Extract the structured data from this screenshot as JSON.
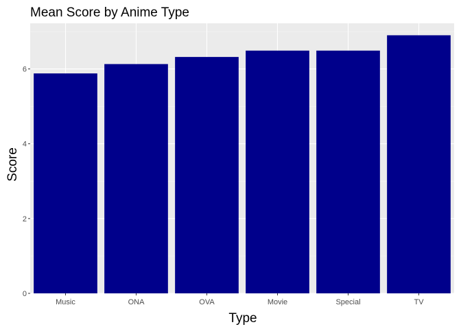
{
  "chart_data": {
    "type": "bar",
    "title": "Mean Score by Anime Type",
    "xlabel": "Type",
    "ylabel": "Score",
    "categories": [
      "Music",
      "ONA",
      "OVA",
      "Movie",
      "Special",
      "TV"
    ],
    "values": [
      5.88,
      6.13,
      6.32,
      6.49,
      6.49,
      6.9
    ],
    "ylim": [
      0,
      7.22
    ],
    "yticks": [
      0,
      2,
      4,
      6
    ],
    "ytick_labels": [
      "0",
      "2",
      "4",
      "6"
    ],
    "grid": true,
    "colors": {
      "bar": "#00008b",
      "panel_background": "#ebebeb",
      "grid_major": "#ffffff",
      "grid_minor": "#f5f5f5",
      "tick_text": "#4d4d4d",
      "tick_mark": "#333333"
    }
  }
}
